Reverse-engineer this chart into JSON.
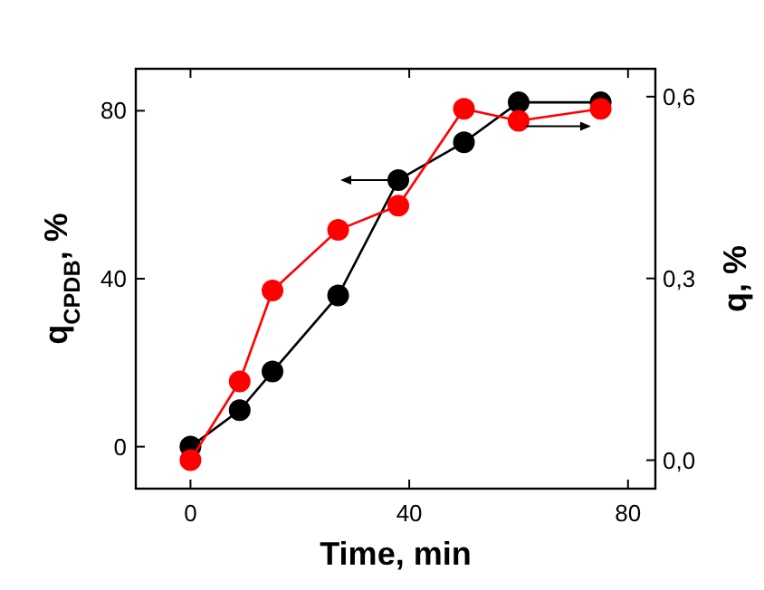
{
  "chart_data": {
    "type": "line",
    "xlabel": "Time, min",
    "ylabel": "q$_{CPDB}$, %",
    "y2label": "q, %",
    "x": [
      0,
      9,
      15,
      27,
      38,
      50,
      60,
      75
    ],
    "series": [
      {
        "color": "#000000",
        "values": [
          0,
          8.7,
          17.9,
          36,
          63.5,
          72.5,
          82,
          82
        ]
      },
      {
        "color": "#ff0000",
        "axis": "y2",
        "values": [
          0,
          0.13,
          0.28,
          0.38,
          0.42,
          0.58,
          0.56,
          0.58
        ]
      }
    ],
    "xlim": [
      -10,
      85
    ],
    "xticks": [
      0,
      40,
      80
    ],
    "ylim": [
      -10,
      90
    ],
    "yticks": [
      0,
      40,
      80
    ],
    "y2lim": [
      -0.047,
      0.646
    ],
    "y2ticks": [
      {
        "value": 0,
        "label": "0,0"
      },
      {
        "value": 0.3,
        "label": "0,3"
      },
      {
        "value": 0.6,
        "label": "0,6"
      }
    ],
    "marker": "circle",
    "line_style": "solid"
  }
}
